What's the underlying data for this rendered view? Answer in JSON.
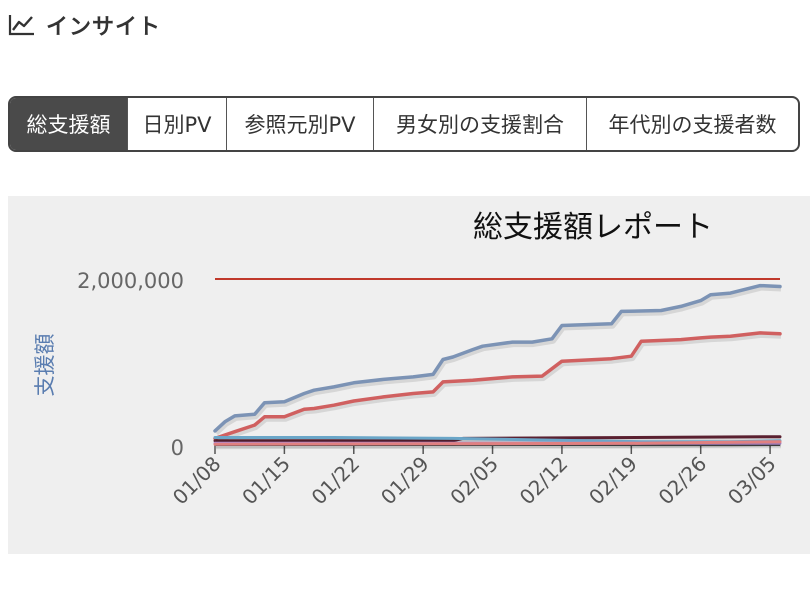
{
  "header": {
    "icon": "line-chart-icon",
    "title": "インサイト"
  },
  "tabs": [
    {
      "label": "総支援額",
      "active": true
    },
    {
      "label": "日別PV",
      "active": false
    },
    {
      "label": "参照元別PV",
      "active": false
    },
    {
      "label": "男女別の支援割合",
      "active": false
    },
    {
      "label": "年代別の支援者数",
      "active": false
    }
  ],
  "chart_data": {
    "type": "line",
    "title": "総支援額レポート",
    "ylabel": "支援額",
    "xlabel": "",
    "y_ticks": [
      "0",
      "2,000,000"
    ],
    "ylim": [
      0,
      2000000
    ],
    "x_ticks": [
      "01/08",
      "01/15",
      "01/22",
      "01/29",
      "02/05",
      "02/12",
      "02/19",
      "02/26",
      "03/05"
    ],
    "xlim": [
      "01/08",
      "03/06"
    ],
    "grid": false,
    "legend": "none",
    "target": {
      "value": 2000000,
      "color": "#c0392b"
    },
    "series": [
      {
        "color": "#7c93b5",
        "x": [
          "01/08",
          "01/09",
          "01/10",
          "01/12",
          "01/13",
          "01/15",
          "01/17",
          "01/18",
          "01/20",
          "01/22",
          "01/25",
          "01/28",
          "01/30",
          "01/31",
          "02/01",
          "02/03",
          "02/04",
          "02/07",
          "02/09",
          "02/11",
          "02/12",
          "02/17",
          "02/18",
          "02/22",
          "02/24",
          "02/26",
          "02/27",
          "03/01",
          "03/04",
          "03/06"
        ],
        "values": [
          170000,
          280000,
          350000,
          370000,
          510000,
          520000,
          620000,
          660000,
          700000,
          750000,
          790000,
          820000,
          850000,
          1030000,
          1060000,
          1150000,
          1190000,
          1240000,
          1240000,
          1280000,
          1440000,
          1460000,
          1610000,
          1620000,
          1670000,
          1740000,
          1810000,
          1830000,
          1920000,
          1910000
        ]
      },
      {
        "color": "#d06060",
        "x": [
          "01/08",
          "01/10",
          "01/12",
          "01/13",
          "01/15",
          "01/17",
          "01/18",
          "01/20",
          "01/22",
          "01/25",
          "01/28",
          "01/30",
          "01/31",
          "02/03",
          "02/07",
          "02/10",
          "02/12",
          "02/17",
          "02/19",
          "02/20",
          "02/24",
          "02/26",
          "02/27",
          "03/01",
          "03/04",
          "03/06"
        ],
        "values": [
          80000,
          160000,
          240000,
          340000,
          340000,
          430000,
          440000,
          480000,
          530000,
          580000,
          620000,
          640000,
          760000,
          780000,
          820000,
          830000,
          1010000,
          1040000,
          1070000,
          1250000,
          1270000,
          1290000,
          1300000,
          1310000,
          1350000,
          1340000
        ]
      },
      {
        "color": "#5a2030",
        "x": [
          "01/08",
          "02/01",
          "02/02",
          "03/06"
        ],
        "values": [
          50000,
          50000,
          80000,
          100000
        ]
      },
      {
        "color": "#6aa6c8",
        "x": [
          "01/08",
          "01/20",
          "02/01",
          "02/10",
          "02/20",
          "03/01",
          "03/06"
        ],
        "values": [
          90000,
          90000,
          80000,
          60000,
          40000,
          40000,
          50000
        ]
      },
      {
        "color": "#b08bd0",
        "x": [
          "01/08",
          "03/06"
        ],
        "values": [
          20000,
          20000
        ]
      },
      {
        "color": "#e08080",
        "x": [
          "01/08",
          "02/20",
          "03/06"
        ],
        "values": [
          10000,
          20000,
          40000
        ]
      }
    ]
  }
}
